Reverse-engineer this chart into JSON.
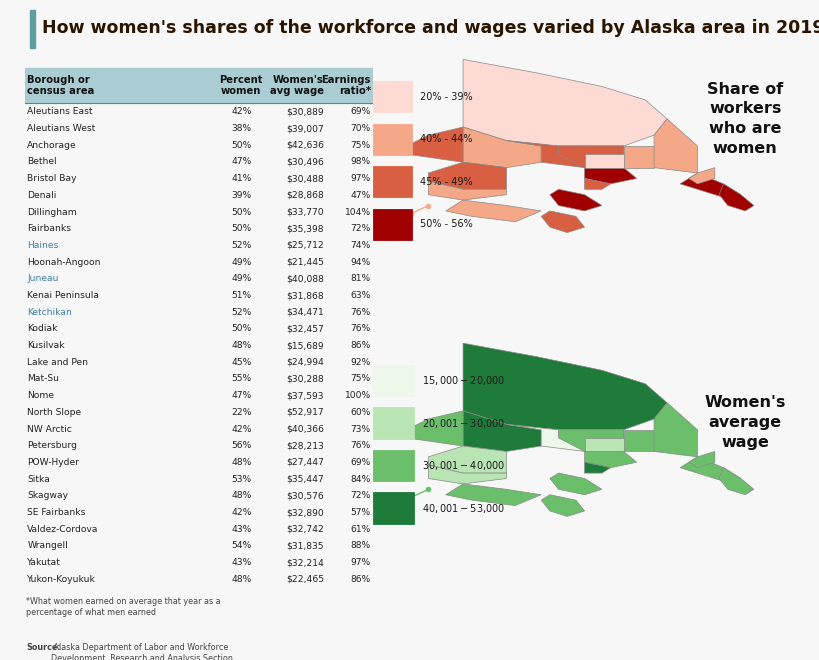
{
  "title": "How women's shares of the workforce and wages varied by Alaska area in 2019",
  "title_color": "#2a1500",
  "accent_bar_color": "#5f9ea0",
  "bg_color": "#f7f7f7",
  "table_header_bg": "#aacdd4",
  "col_headers": [
    "Borough or\ncensus area",
    "Percent\nwomen",
    "Women's\navg wage",
    "Earnings\nratio*"
  ],
  "rows": [
    [
      "Aleutians East",
      "42%",
      "$30,889",
      "69%"
    ],
    [
      "Aleutians West",
      "38%",
      "$39,007",
      "70%"
    ],
    [
      "Anchorage",
      "50%",
      "$42,636",
      "75%"
    ],
    [
      "Bethel",
      "47%",
      "$30,496",
      "98%"
    ],
    [
      "Bristol Bay",
      "41%",
      "$30,488",
      "97%"
    ],
    [
      "Denali",
      "39%",
      "$28,868",
      "47%"
    ],
    [
      "Dillingham",
      "50%",
      "$33,770",
      "104%"
    ],
    [
      "Fairbanks",
      "50%",
      "$35,398",
      "72%"
    ],
    [
      "Haines",
      "52%",
      "$25,712",
      "74%"
    ],
    [
      "Hoonah-Angoon",
      "49%",
      "$21,445",
      "94%"
    ],
    [
      "Juneau",
      "49%",
      "$40,088",
      "81%"
    ],
    [
      "Kenai Peninsula",
      "51%",
      "$31,868",
      "63%"
    ],
    [
      "Ketchikan",
      "52%",
      "$34,471",
      "76%"
    ],
    [
      "Kodiak",
      "50%",
      "$32,457",
      "76%"
    ],
    [
      "Kusilvak",
      "48%",
      "$15,689",
      "86%"
    ],
    [
      "Lake and Pen",
      "45%",
      "$24,994",
      "92%"
    ],
    [
      "Mat-Su",
      "55%",
      "$30,288",
      "75%"
    ],
    [
      "Nome",
      "47%",
      "$37,593",
      "100%"
    ],
    [
      "North Slope",
      "22%",
      "$52,917",
      "60%"
    ],
    [
      "NW Arctic",
      "42%",
      "$40,366",
      "73%"
    ],
    [
      "Petersburg",
      "56%",
      "$28,213",
      "76%"
    ],
    [
      "POW-Hyder",
      "48%",
      "$27,447",
      "69%"
    ],
    [
      "Sitka",
      "53%",
      "$35,447",
      "84%"
    ],
    [
      "Skagway",
      "48%",
      "$30,576",
      "72%"
    ],
    [
      "SE Fairbanks",
      "42%",
      "$32,890",
      "57%"
    ],
    [
      "Valdez-Cordova",
      "43%",
      "$32,742",
      "61%"
    ],
    [
      "Wrangell",
      "54%",
      "$31,835",
      "88%"
    ],
    [
      "Yakutat",
      "43%",
      "$32,214",
      "97%"
    ],
    [
      "Yukon-Koyukuk",
      "48%",
      "$22,465",
      "86%"
    ]
  ],
  "footnote": "*What women earned on average that year as a\npercentage of what men earned",
  "source_bold": "Source:",
  "source_rest": " Alaska Department of Labor and Workforce\nDevelopment, Research and Analysis Section",
  "map1_title": "Share of\nworkers\nwho are\nwomen",
  "map2_title": "Women's\naverage\nwage",
  "legend1_items": [
    {
      "label": "20% - 39%",
      "color": "#fddbd4"
    },
    {
      "label": "40% - 44%",
      "color": "#f5a887"
    },
    {
      "label": "45% - 49%",
      "color": "#d95f43"
    },
    {
      "label": "50% - 56%",
      "color": "#a00000"
    }
  ],
  "legend2_items": [
    {
      "label": "$15,000 - $20,000",
      "color": "#eef8ea"
    },
    {
      "label": "$20,001 - $30,000",
      "color": "#b9e4b3"
    },
    {
      "label": "$30,001 - $40,000",
      "color": "#6bbf6a"
    },
    {
      "label": "$40,001 - $53,000",
      "color": "#1e7b3a"
    }
  ],
  "highlighted_rows": [
    "Haines",
    "Juneau",
    "Ketchikan"
  ]
}
